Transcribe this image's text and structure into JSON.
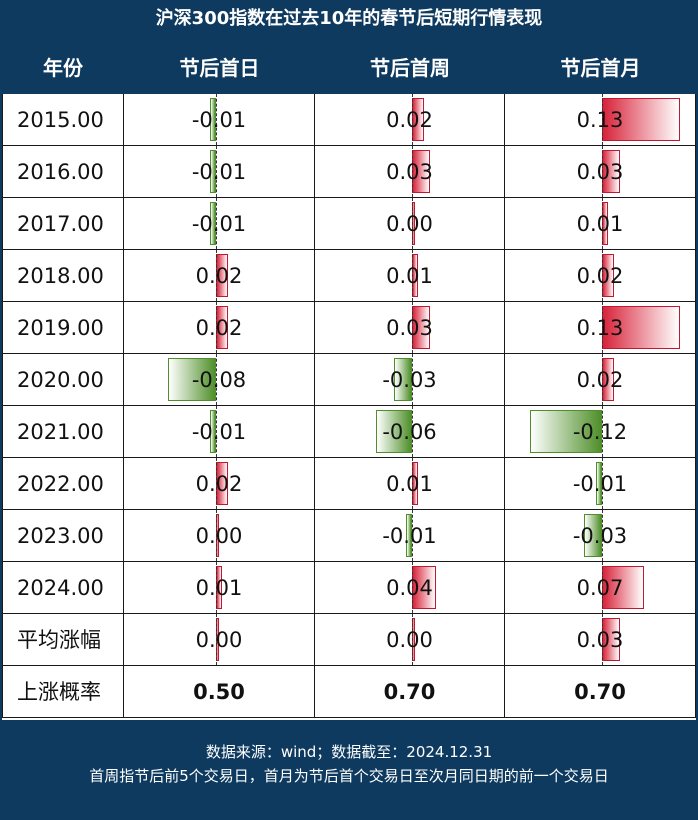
{
  "title": "沪深300指数在过去10年的春节后短期行情表现",
  "chart_data": {
    "type": "table",
    "columns": [
      "年份",
      "节后首日",
      "节后首周",
      "节后首月"
    ],
    "rows": [
      {
        "label": "2015.00",
        "values": [
          -0.01,
          0.02,
          0.13
        ],
        "labels": [
          "-0.01",
          "0.02",
          "0.13"
        ]
      },
      {
        "label": "2016.00",
        "values": [
          -0.01,
          0.03,
          0.03
        ],
        "labels": [
          "-0.01",
          "0.03",
          "0.03"
        ]
      },
      {
        "label": "2017.00",
        "values": [
          -0.01,
          0.0,
          0.01
        ],
        "labels": [
          "-0.01",
          "0.00",
          "0.01"
        ]
      },
      {
        "label": "2018.00",
        "values": [
          0.02,
          0.01,
          0.02
        ],
        "labels": [
          "0.02",
          "0.01",
          "0.02"
        ]
      },
      {
        "label": "2019.00",
        "values": [
          0.02,
          0.03,
          0.13
        ],
        "labels": [
          "0.02",
          "0.03",
          "0.13"
        ]
      },
      {
        "label": "2020.00",
        "values": [
          -0.08,
          -0.03,
          0.02
        ],
        "labels": [
          "-0.08",
          "-0.03",
          "0.02"
        ]
      },
      {
        "label": "2021.00",
        "values": [
          -0.01,
          -0.06,
          -0.12
        ],
        "labels": [
          "-0.01",
          "-0.06",
          "-0.12"
        ]
      },
      {
        "label": "2022.00",
        "values": [
          0.02,
          0.01,
          -0.01
        ],
        "labels": [
          "0.02",
          "0.01",
          "-0.01"
        ]
      },
      {
        "label": "2023.00",
        "values": [
          0.0,
          -0.01,
          -0.03
        ],
        "labels": [
          "0.00",
          "-0.01",
          "-0.03"
        ]
      },
      {
        "label": "2024.00",
        "values": [
          0.01,
          0.04,
          0.07
        ],
        "labels": [
          "0.01",
          "0.04",
          "0.07"
        ]
      },
      {
        "label": "平均涨幅",
        "values": [
          0.0,
          0.0,
          0.03
        ],
        "labels": [
          "0.00",
          "0.00",
          "0.03"
        ]
      },
      {
        "label": "上涨概率",
        "values": [
          0.5,
          0.7,
          0.7
        ],
        "labels": [
          "0.50",
          "0.70",
          "0.70"
        ],
        "bars": false,
        "bold": true
      }
    ],
    "colors": {
      "positive": "#d8233a",
      "negative": "#4f8f2a",
      "header": "#0e3a5f"
    }
  },
  "footer": {
    "line1": "数据来源：wind；数据截至：2024.12.31",
    "line2": "首周指节后前5个交易日，首月为节后首个交易日至次月同日期的前一个交易日"
  }
}
